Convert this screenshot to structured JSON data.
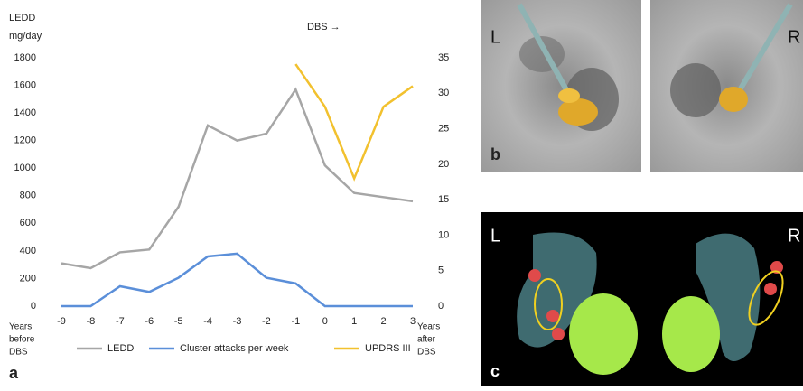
{
  "chart_data": {
    "type": "line",
    "y_label": [
      "LEDD",
      "mg/day"
    ],
    "annotation": "DBS →",
    "x_label_before": [
      "Years",
      "before",
      "DBS"
    ],
    "x_label_after": [
      "Years",
      "after",
      "DBS"
    ],
    "categories": [
      "-9",
      "-8",
      "-7",
      "-6",
      "-5",
      "-4",
      "-3",
      "-2",
      "-1",
      "0",
      "1",
      "2",
      "3"
    ],
    "ylim": [
      0,
      1800
    ],
    "yticks": [
      0,
      200,
      400,
      600,
      800,
      1000,
      1200,
      1400,
      1600,
      1800
    ],
    "y2lim": [
      0,
      35
    ],
    "y2ticks": [
      0,
      5,
      10,
      15,
      20,
      25,
      30,
      35
    ],
    "grid": false,
    "legend": "bottom",
    "series": [
      {
        "name": "LEDD",
        "color": "#a6a6a6",
        "values": [
          310,
          275,
          390,
          410,
          720,
          1310,
          1200,
          1250,
          1570,
          1020,
          820,
          790,
          760
        ]
      },
      {
        "name": "Cluster attacks per week",
        "color": "#5b8fd9",
        "axis": "y2",
        "values": [
          0,
          0,
          2.8,
          2,
          4,
          7,
          7.4,
          4,
          3.2,
          0,
          0,
          0,
          0
        ]
      },
      {
        "name": "UPDRS III",
        "color": "#f2c12e",
        "axis": "y2",
        "values": [
          null,
          null,
          null,
          null,
          null,
          null,
          null,
          null,
          34.1,
          28.1,
          18,
          28.1,
          31
        ]
      }
    ]
  },
  "panel_labels": [
    "a",
    "b",
    "c"
  ],
  "side_labels": [
    "L",
    "R"
  ]
}
